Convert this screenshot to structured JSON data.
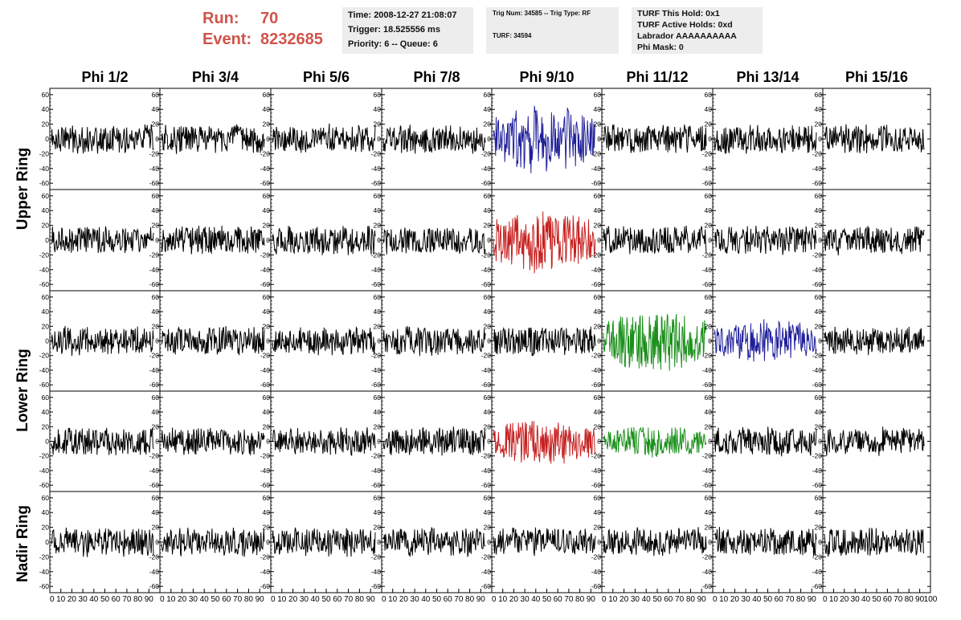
{
  "run_info": {
    "run_label": "Run:",
    "run_value": "70",
    "event_label": "Event:",
    "event_value": "8232685"
  },
  "time_box": {
    "time": "Time: 2008-12-27 21:08:07",
    "trigger": "Trigger: 18.525556 ms",
    "priority": "Priority: 6 -- Queue: 6"
  },
  "trig_box": {
    "trig": "Trig Num: 34585 -- Trig Type: RF",
    "turf": "TURF: 34594"
  },
  "turf_box": {
    "this_hold": "TURF This Hold: 0x1",
    "active_holds": "TURF Active Holds: 0xd",
    "labrador": "Labrador AAAAAAAAAA",
    "phi_mask": "Phi Mask: 0"
  },
  "phi_headers": [
    "Phi 1/2",
    "Phi 3/4",
    "Phi 5/6",
    "Phi 7/8",
    "Phi 9/10",
    "Phi 11/12",
    "Phi 13/14",
    "Phi 15/16"
  ],
  "ring_labels": {
    "upper": "Upper Ring",
    "lower": "Lower Ring",
    "nadir": "Nadir Ring"
  },
  "colors": {
    "run_text": "#d0534b",
    "info_bg": "#ededed",
    "trace_default": "#000000",
    "trace_blue": "#1f1f9a",
    "trace_red": "#c62020",
    "trace_green": "#1a8f1a"
  },
  "chart_data": {
    "type": "line",
    "y_ticks": [
      60,
      40,
      20,
      0,
      -20,
      -40,
      -60
    ],
    "ylim": [
      -62,
      62
    ],
    "xlim": [
      0,
      100
    ],
    "x_tick_labels": [
      "0",
      "10",
      "20",
      "30",
      "40",
      "50",
      "60",
      "70",
      "80",
      "90",
      "100"
    ],
    "x_tick_labels_last": [
      "0",
      "10",
      "20",
      "30",
      "40",
      "50",
      "60",
      "70",
      "80",
      "90",
      "100"
    ],
    "highlighted_traces": [
      {
        "row": 0,
        "col": 4,
        "color": "trace_blue",
        "amplitude": 38
      },
      {
        "row": 1,
        "col": 4,
        "color": "trace_red",
        "amplitude": 36
      },
      {
        "row": 2,
        "col": 5,
        "color": "trace_green",
        "amplitude": 36
      },
      {
        "row": 2,
        "col": 6,
        "color": "trace_blue",
        "amplitude": 24
      },
      {
        "row": 3,
        "col": 4,
        "color": "trace_red",
        "amplitude": 26
      },
      {
        "row": 3,
        "col": 5,
        "color": "trace_green",
        "amplitude": 18
      }
    ],
    "rows": 5,
    "cols": 8
  }
}
